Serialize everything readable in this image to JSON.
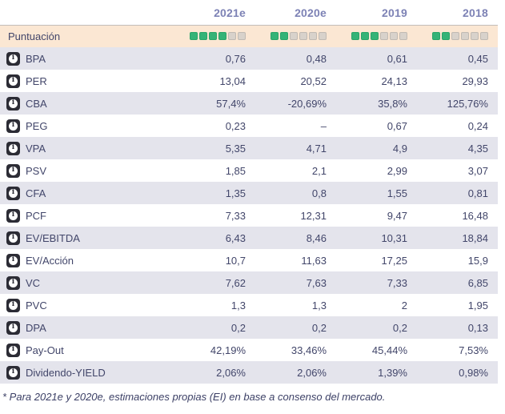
{
  "header": {
    "columns": [
      "2021e",
      "2020e",
      "2019",
      "2018"
    ]
  },
  "score_row": {
    "label": "Puntuación",
    "max_squares": 6,
    "scores": [
      4,
      2,
      3,
      2
    ]
  },
  "rows": [
    {
      "label": "BPA",
      "values": [
        "0,76",
        "0,48",
        "0,61",
        "0,45"
      ]
    },
    {
      "label": "PER",
      "values": [
        "13,04",
        "20,52",
        "24,13",
        "29,93"
      ]
    },
    {
      "label": "CBA",
      "values": [
        "57,4%",
        "-20,69%",
        "35,8%",
        "125,76%"
      ]
    },
    {
      "label": "PEG",
      "values": [
        "0,23",
        "–",
        "0,67",
        "0,24"
      ]
    },
    {
      "label": "VPA",
      "values": [
        "5,35",
        "4,71",
        "4,9",
        "4,35"
      ]
    },
    {
      "label": "PSV",
      "values": [
        "1,85",
        "2,1",
        "2,99",
        "3,07"
      ]
    },
    {
      "label": "CFA",
      "values": [
        "1,35",
        "0,8",
        "1,55",
        "0,81"
      ]
    },
    {
      "label": "PCF",
      "values": [
        "7,33",
        "12,31",
        "9,47",
        "16,48"
      ]
    },
    {
      "label": "EV/EBITDA",
      "values": [
        "6,43",
        "8,46",
        "10,31",
        "18,84"
      ]
    },
    {
      "label": "EV/Acción",
      "values": [
        "10,7",
        "11,63",
        "17,25",
        "15,9"
      ]
    },
    {
      "label": "VC",
      "values": [
        "7,62",
        "7,63",
        "7,33",
        "6,85"
      ]
    },
    {
      "label": "PVC",
      "values": [
        "1,3",
        "1,3",
        "2",
        "1,95"
      ]
    },
    {
      "label": "DPA",
      "values": [
        "0,2",
        "0,2",
        "0,2",
        "0,13"
      ]
    },
    {
      "label": "Pay-Out",
      "values": [
        "42,19%",
        "33,46%",
        "45,44%",
        "7,53%"
      ]
    },
    {
      "label": "Dividendo-YIELD",
      "values": [
        "2,06%",
        "2,06%",
        "1,39%",
        "0,98%"
      ]
    }
  ],
  "footnote": "* Para 2021e y 2020e, estimaciones propias (EI) en base a consenso del mercado.",
  "icons": {
    "info": "info-circle-icon"
  },
  "colors": {
    "score_row_bg": "#fbe7d3",
    "alt_row_bg": "#e4e4ec",
    "header_text": "#7d82b5",
    "body_text": "#42466a",
    "square_on": "#34b377",
    "square_off": "#d8d2cb",
    "icon_badge_bg": "#2c2c35",
    "table_top_border": "#c2bdb9"
  }
}
